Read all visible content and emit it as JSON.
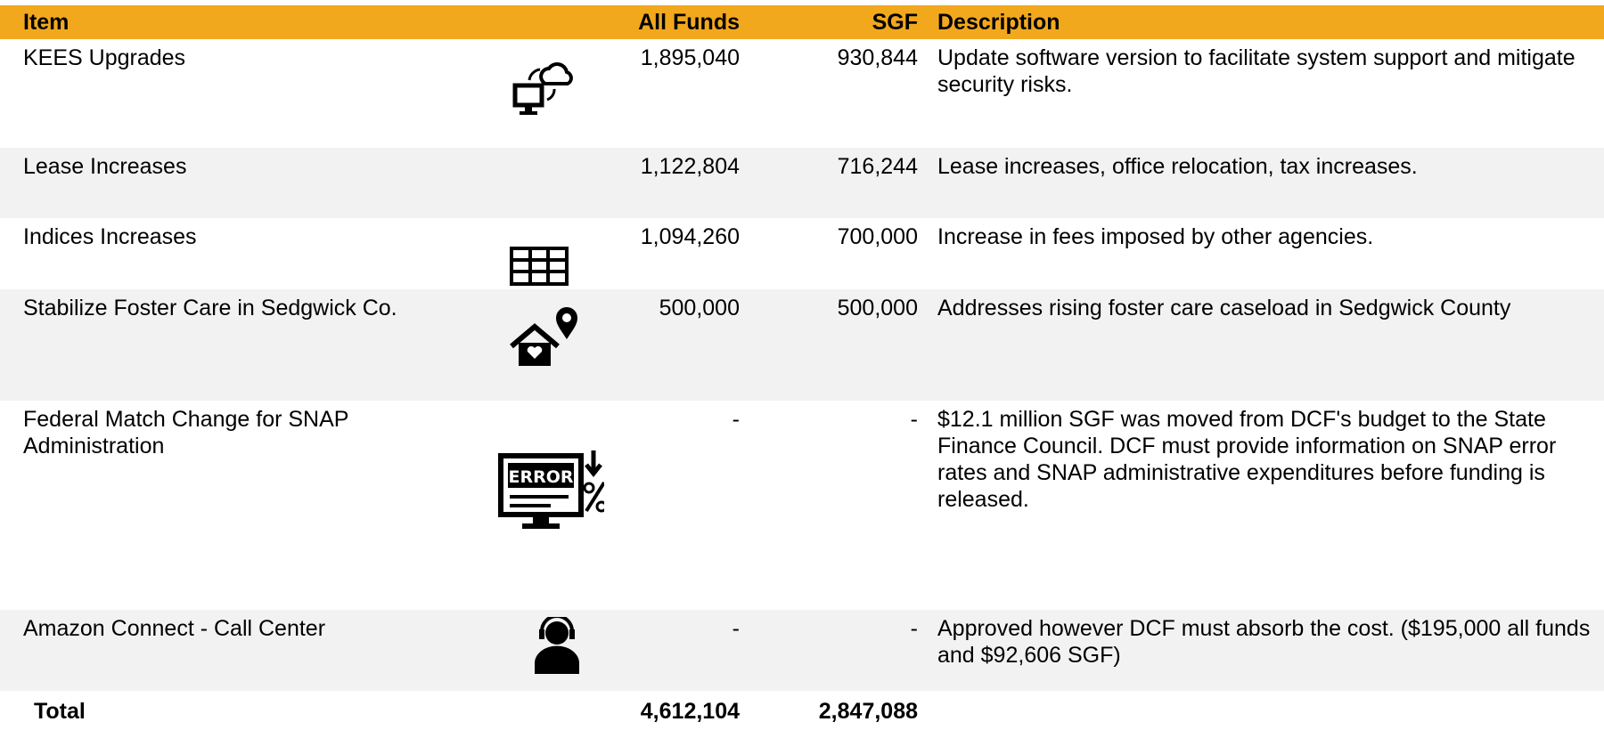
{
  "header": {
    "item": "Item",
    "all_funds": "All Funds",
    "sgf": "SGF",
    "description": "Description"
  },
  "rows": [
    {
      "item": "KEES Upgrades",
      "all_funds": "1,895,040",
      "sgf": "930,844",
      "description": "Update software version to facilitate system support and mitigate security risks."
    },
    {
      "item": "Lease Increases",
      "all_funds": "1,122,804",
      "sgf": "716,244",
      "description": "Lease increases, office relocation, tax increases."
    },
    {
      "item": "Indices Increases",
      "all_funds": "1,094,260",
      "sgf": "700,000",
      "description": "Increase in fees imposed by other agencies."
    },
    {
      "item": "Stabilize Foster Care in Sedgwick Co.",
      "all_funds": "500,000",
      "sgf": "500,000",
      "description": "Addresses rising foster care caseload in Sedgwick County"
    },
    {
      "item": "Federal Match Change for SNAP Administration",
      "all_funds": "-",
      "sgf": "-",
      "description": "$12.1 million SGF was moved from DCF's budget to the State Finance Council. DCF must provide information on SNAP error rates and SNAP administrative expenditures before funding is released."
    },
    {
      "item": "Amazon Connect - Call Center",
      "all_funds": "-",
      "sgf": "-",
      "description": "Approved however DCF must absorb the cost. ($195,000 all funds and $92,606 SGF)"
    }
  ],
  "total": {
    "label": "Total",
    "all_funds": "4,612,104",
    "sgf": "2,847,088"
  }
}
